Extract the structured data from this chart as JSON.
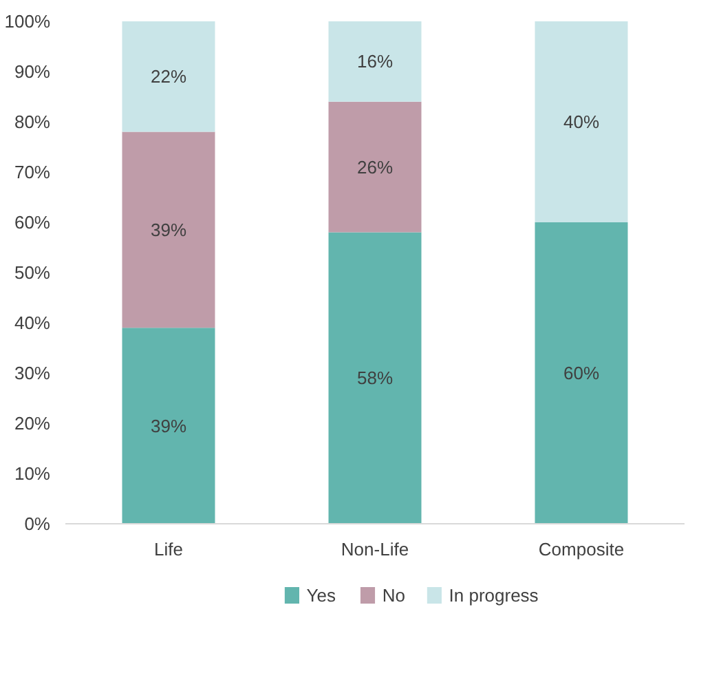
{
  "chart_data": {
    "type": "bar",
    "stacked": true,
    "categories": [
      "Life",
      "Non-Life",
      "Composite"
    ],
    "series": [
      {
        "name": "Yes",
        "color": "#62b5ae",
        "values": [
          39,
          58,
          60
        ],
        "value_labels": [
          "39%",
          "58%",
          "60%"
        ]
      },
      {
        "name": "No",
        "color": "#bf9ca9",
        "values": [
          39,
          26,
          null
        ],
        "value_labels": [
          "39%",
          "26%",
          null
        ]
      },
      {
        "name": "In progress",
        "color": "#c9e5e8",
        "values": [
          22,
          16,
          40
        ],
        "value_labels": [
          "22%",
          "16%",
          "40%"
        ]
      }
    ],
    "ylim": [
      0,
      100
    ],
    "yticks": [
      {
        "value": 0,
        "label": "0%"
      },
      {
        "value": 10,
        "label": "10%"
      },
      {
        "value": 20,
        "label": "20%"
      },
      {
        "value": 30,
        "label": "30%"
      },
      {
        "value": 40,
        "label": "40%"
      },
      {
        "value": 50,
        "label": "50%"
      },
      {
        "value": 60,
        "label": "60%"
      },
      {
        "value": 70,
        "label": "70%"
      },
      {
        "value": 80,
        "label": "80%"
      },
      {
        "value": 90,
        "label": "90%"
      },
      {
        "value": 100,
        "label": "100%"
      }
    ],
    "grid": false,
    "legend": "bottom"
  }
}
